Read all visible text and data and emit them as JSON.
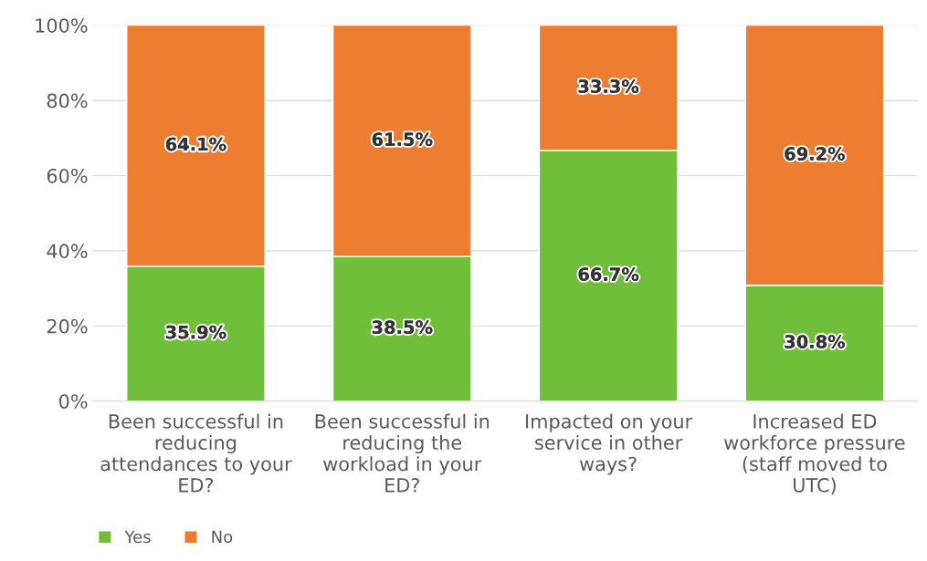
{
  "chart_data": {
    "type": "bar",
    "stacked": true,
    "categories": [
      "Been successful in reducing attendances to your ED?",
      "Been successful in reducing the workload in your ED?",
      "Impacted on your service in other ways?",
      "Increased ED workforce pressure (staff moved to UTC)"
    ],
    "series": [
      {
        "name": "Yes",
        "color": "#70bf3a",
        "values": [
          35.9,
          38.5,
          66.7,
          30.8
        ],
        "value_labels": [
          "35.9%",
          "38.5%",
          "66.7%",
          "30.8%"
        ]
      },
      {
        "name": "No",
        "color": "#ed7d31",
        "values": [
          64.1,
          61.5,
          33.3,
          69.2
        ],
        "value_labels": [
          "64.1%",
          "61.5%",
          "33.3%",
          "69.2%"
        ]
      }
    ],
    "ylim": [
      0,
      100
    ],
    "yticks": [
      {
        "value": 0,
        "label": "0%"
      },
      {
        "value": 20,
        "label": "20%"
      },
      {
        "value": 40,
        "label": "40%"
      },
      {
        "value": 60,
        "label": "60%"
      },
      {
        "value": 80,
        "label": "80%"
      },
      {
        "value": 100,
        "label": "100%"
      }
    ],
    "grid": "y",
    "legend": "bottom left"
  }
}
